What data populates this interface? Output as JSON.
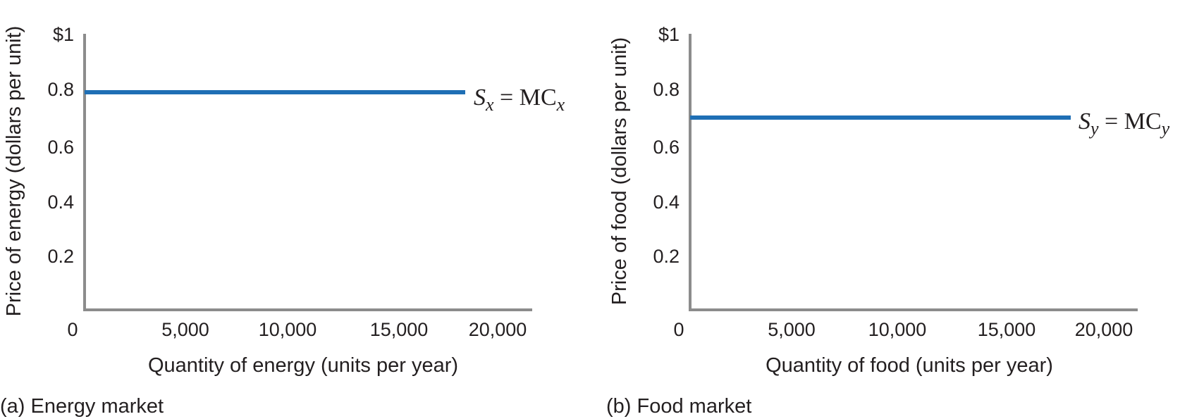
{
  "chart_data": [
    {
      "type": "line",
      "caption": "(a) Energy market",
      "xlabel": "Quantity of energy (units per year)",
      "ylabel": "Price of energy (dollars per unit)",
      "x_ticks": [
        "0",
        "5,000",
        "10,000",
        "15,000",
        "20,000"
      ],
      "y_ticks": [
        "0.2",
        "0.4",
        "0.6",
        "0.8",
        "$1"
      ],
      "xlim": [
        0,
        20000
      ],
      "ylim": [
        0,
        1
      ],
      "series": [
        {
          "label_main": "S",
          "label_sub": "x",
          "label_mid": " = MC",
          "label_sub2": "x",
          "color": "#1f6fb5",
          "x": [
            0,
            17000
          ],
          "y": [
            0.79,
            0.79
          ]
        }
      ]
    },
    {
      "type": "line",
      "caption": "(b) Food market",
      "xlabel": "Quantity of food (units per year)",
      "ylabel": "Price of food (dollars per unit)",
      "x_ticks": [
        "0",
        "5,000",
        "10,000",
        "15,000",
        "20,000"
      ],
      "y_ticks": [
        "0.2",
        "0.4",
        "0.6",
        "0.8",
        "$1"
      ],
      "xlim": [
        0,
        20000
      ],
      "ylim": [
        0,
        1
      ],
      "series": [
        {
          "label_main": "S",
          "label_sub": "y",
          "label_mid": " = MC",
          "label_sub2": "y",
          "color": "#1f6fb5",
          "x": [
            0,
            17000
          ],
          "y": [
            0.7,
            0.7
          ]
        }
      ]
    }
  ]
}
